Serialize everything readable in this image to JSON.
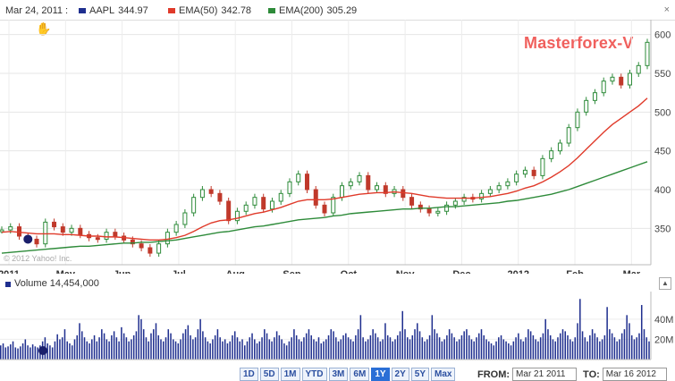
{
  "legend": {
    "date": "Mar 24, 2011 :",
    "items": [
      {
        "label": "AAPL",
        "value": "344.97",
        "color": "#1f2f8f"
      },
      {
        "label": "EMA(50)",
        "value": "342.78",
        "color": "#e03a2a"
      },
      {
        "label": "EMA(200)",
        "value": "305.29",
        "color": "#2e8b3a"
      }
    ],
    "close_glyph": "×"
  },
  "watermark": "Masterforex-V",
  "price_axis": {
    "ticks": [
      "600",
      "550",
      "500",
      "450",
      "400",
      "350"
    ]
  },
  "months": [
    "2011",
    "May",
    "Jun",
    "Jul",
    "Aug",
    "Sep",
    "Oct",
    "Nov",
    "Dec",
    "2012",
    "Feb",
    "Mar"
  ],
  "copyright": "© 2012 Yahoo! Inc.",
  "volume": {
    "label": "Volume",
    "value": "14,454,000",
    "ticks": [
      "40M",
      "20M"
    ],
    "toggle": "▲"
  },
  "range_buttons": [
    "1D",
    "5D",
    "1M",
    "YTD",
    "3M",
    "6M",
    "1Y",
    "2Y",
    "5Y",
    "Max"
  ],
  "active_range": "1Y",
  "from_label": "FROM:",
  "from_value": "Mar 21 2011",
  "to_label": "TO:",
  "to_value": "Mar 16 2012",
  "chart_data": {
    "type": "line",
    "series": [
      {
        "name": "AAPL",
        "color": "#2e8b3a",
        "values": [
          348,
          352,
          340,
          336,
          330,
          358,
          352,
          345,
          350,
          342,
          338,
          336,
          345,
          340,
          335,
          330,
          325,
          318,
          330,
          345,
          355,
          370,
          390,
          400,
          395,
          385,
          360,
          372,
          380,
          390,
          375,
          385,
          395,
          410,
          420,
          400,
          380,
          370,
          390,
          405,
          410,
          418,
          400,
          405,
          395,
          400,
          390,
          380,
          375,
          370,
          372,
          380,
          385,
          390,
          388,
          395,
          400,
          405,
          410,
          420,
          425,
          418,
          440,
          450,
          460,
          480,
          500,
          515,
          525,
          540,
          545,
          535,
          550,
          560,
          590
        ]
      },
      {
        "name": "EMA(50)",
        "color": "#e03a2a",
        "values": [
          345,
          346,
          345,
          344,
          343,
          343,
          343,
          342,
          342,
          341,
          340,
          340,
          339,
          339,
          338,
          337,
          336,
          335,
          335,
          336,
          338,
          341,
          346,
          352,
          357,
          360,
          361,
          363,
          366,
          369,
          371,
          374,
          377,
          381,
          385,
          387,
          387,
          387,
          388,
          390,
          392,
          394,
          395,
          396,
          396,
          397,
          396,
          395,
          393,
          391,
          390,
          389,
          389,
          389,
          389,
          390,
          391,
          393,
          395,
          398,
          402,
          405,
          410,
          416,
          423,
          431,
          441,
          452,
          463,
          474,
          484,
          492,
          500,
          508,
          518
        ]
      },
      {
        "name": "EMA(200)",
        "color": "#2e8b3a",
        "values": [
          318,
          319,
          320,
          321,
          322,
          323,
          324,
          325,
          326,
          327,
          327,
          328,
          329,
          330,
          331,
          331,
          332,
          332,
          333,
          334,
          335,
          337,
          339,
          341,
          343,
          345,
          346,
          348,
          350,
          352,
          353,
          355,
          357,
          359,
          361,
          362,
          363,
          364,
          366,
          367,
          369,
          370,
          371,
          372,
          373,
          374,
          375,
          375,
          376,
          376,
          377,
          378,
          378,
          379,
          380,
          381,
          382,
          383,
          385,
          386,
          388,
          390,
          392,
          394,
          397,
          400,
          404,
          408,
          412,
          416,
          420,
          424,
          428,
          432,
          436
        ]
      }
    ],
    "ylim": [
      310,
      610
    ],
    "volume_values": [
      14,
      16,
      12,
      13,
      15,
      18,
      12,
      11,
      13,
      16,
      20,
      14,
      12,
      15,
      13,
      12,
      14,
      18,
      22,
      16,
      14,
      12,
      18,
      25,
      20,
      22,
      30,
      18,
      16,
      14,
      20,
      24,
      36,
      28,
      22,
      18,
      16,
      20,
      24,
      18,
      22,
      30,
      26,
      20,
      18,
      24,
      28,
      22,
      18,
      32,
      26,
      22,
      18,
      20,
      24,
      28,
      44,
      40,
      30,
      22,
      18,
      26,
      30,
      36,
      24,
      20,
      18,
      22,
      30,
      26,
      20,
      18,
      16,
      20,
      26,
      30,
      34,
      24,
      20,
      22,
      30,
      40,
      28,
      22,
      18,
      16,
      20,
      24,
      30,
      22,
      18,
      20,
      16,
      18,
      24,
      28,
      22,
      18,
      20,
      14,
      18,
      22,
      26,
      20,
      16,
      18,
      22,
      30,
      26,
      20,
      18,
      22,
      28,
      24,
      20,
      16,
      14,
      18,
      22,
      30,
      24,
      20,
      18,
      22,
      26,
      30,
      24,
      20,
      18,
      22,
      16,
      18,
      20,
      24,
      30,
      28,
      22,
      18,
      20,
      24,
      26,
      22,
      20,
      18,
      24,
      30,
      44,
      22,
      18,
      20,
      24,
      30,
      26,
      22,
      18,
      20,
      36,
      24,
      22,
      18,
      20,
      24,
      28,
      48,
      30,
      22,
      20,
      24,
      30,
      36,
      28,
      22,
      18,
      20,
      24,
      44,
      30,
      26,
      22,
      18,
      20,
      24,
      30,
      26,
      22,
      18,
      20,
      24,
      28,
      30,
      24,
      20,
      18,
      22,
      26,
      30,
      24,
      20,
      18,
      16,
      14,
      18,
      22,
      24,
      20,
      18,
      16,
      14,
      18,
      22,
      26,
      20,
      18,
      22,
      30,
      28,
      24,
      20,
      18,
      22,
      26,
      40,
      30,
      24,
      20,
      18,
      22,
      26,
      30,
      28,
      24,
      20,
      18,
      22,
      36,
      60,
      28,
      22,
      18,
      24,
      30,
      26,
      22,
      18,
      20,
      24,
      52,
      30,
      26,
      22,
      18,
      20,
      26,
      30,
      44,
      36,
      24,
      20,
      22,
      26,
      54,
      30,
      22,
      18
    ]
  }
}
